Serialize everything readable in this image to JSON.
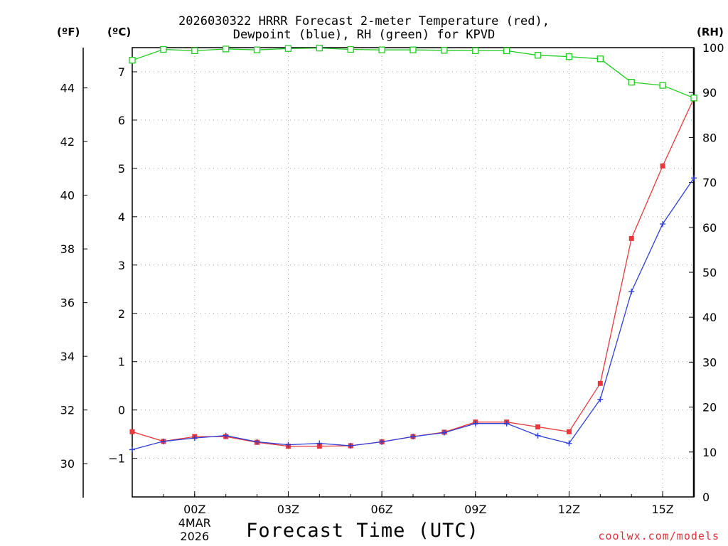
{
  "title": {
    "line1": "2026030322 HRRR Forecast 2-meter Temperature (red),",
    "line2": "Dewpoint (blue), RH (green) for KPVD"
  },
  "units": {
    "fahrenheit": "(ºF)",
    "celsius": "(ºC)",
    "rh": "(RH)"
  },
  "xlabel": "Forecast Time (UTC)",
  "credit": "coolwx.com/models",
  "colors": {
    "temperature": "#e8383d",
    "dewpoint": "#2e3fd6",
    "rh": "#22cc22",
    "grid": "#a0a0a0"
  },
  "chart_data": {
    "type": "line",
    "title": "2026030322 HRRR Forecast 2-meter Temperature (red), Dewpoint (blue), RH (green) for KPVD",
    "xlabel": "Forecast Time (UTC)",
    "x": [
      "22Z",
      "23Z",
      "00Z",
      "01Z",
      "02Z",
      "03Z",
      "04Z",
      "05Z",
      "06Z",
      "07Z",
      "08Z",
      "09Z",
      "10Z",
      "11Z",
      "12Z",
      "13Z",
      "14Z",
      "15Z",
      "16Z"
    ],
    "x_ticks": [
      {
        "index": 2,
        "label": "00Z",
        "sub1": "4MAR",
        "sub2": "2026"
      },
      {
        "index": 5,
        "label": "03Z"
      },
      {
        "index": 8,
        "label": "06Z"
      },
      {
        "index": 11,
        "label": "09Z"
      },
      {
        "index": 14,
        "label": "12Z"
      },
      {
        "index": 17,
        "label": "15Z"
      }
    ],
    "y_celsius": {
      "range": [
        -1.8,
        7.5
      ],
      "ticks": [
        -1,
        0,
        1,
        2,
        3,
        4,
        5,
        6,
        7
      ],
      "tick_labels": [
        "−1",
        "0",
        "1",
        "2",
        "3",
        "4",
        "5",
        "6",
        "7"
      ]
    },
    "y_fahrenheit": {
      "range": [
        28.76,
        45.5
      ],
      "ticks": [
        30,
        32,
        34,
        36,
        38,
        40,
        42,
        44
      ]
    },
    "y_rh": {
      "range": [
        0,
        100
      ],
      "ticks": [
        0,
        10,
        20,
        30,
        40,
        50,
        60,
        70,
        80,
        90,
        100
      ]
    },
    "series": [
      {
        "name": "Temperature",
        "unit": "C",
        "marker": "filled-square",
        "values": [
          -0.45,
          -0.65,
          -0.55,
          -0.55,
          -0.67,
          -0.75,
          -0.75,
          -0.74,
          -0.66,
          -0.55,
          -0.46,
          -0.25,
          -0.25,
          -0.35,
          -0.45,
          0.55,
          3.55,
          5.05,
          6.45
        ]
      },
      {
        "name": "Dewpoint",
        "unit": "C",
        "marker": "plus",
        "values": [
          -0.82,
          -0.65,
          -0.58,
          -0.53,
          -0.66,
          -0.72,
          -0.69,
          -0.74,
          -0.66,
          -0.55,
          -0.47,
          -0.28,
          -0.28,
          -0.53,
          -0.69,
          0.22,
          2.45,
          3.85,
          4.8
        ]
      },
      {
        "name": "Relative Humidity",
        "unit": "%",
        "marker": "open-square",
        "values": [
          97.2,
          99.6,
          99.3,
          99.7,
          99.5,
          99.8,
          99.9,
          99.6,
          99.5,
          99.5,
          99.4,
          99.3,
          99.3,
          98.3,
          98.0,
          97.5,
          92.3,
          91.6,
          88.8
        ]
      }
    ]
  }
}
